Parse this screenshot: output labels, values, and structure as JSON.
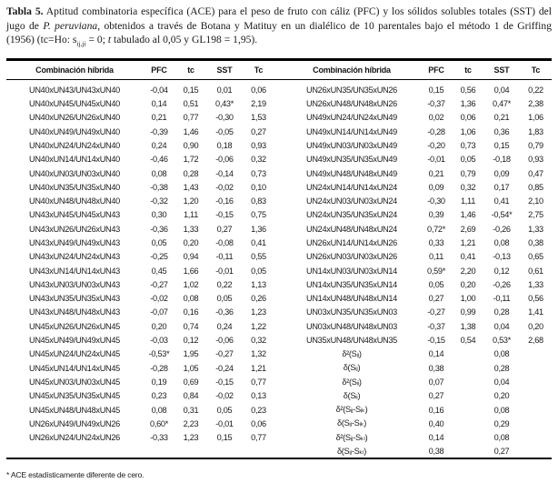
{
  "caption": {
    "label": "Tabla 5.",
    "seg1": " Aptitud combinatoria específica (ACE) para el peso de fruto con cáliz (PFC) y los sólidos solubles totales (SST) del jugo de ",
    "species": "P. peruviana",
    "seg2": ", obtenidos a través de Botana y Matituy en un dialélico de 10 parentales bajo el método 1 de Griffing (1956) (tc=Ho: s",
    "sub": "ij,ji",
    "seg3": " = 0; ",
    "t_symbol": "t",
    "seg4": " tabulado al 0,05 y GL198 = 1,95)."
  },
  "table": {
    "columns": [
      "Combinación híbrida",
      "PFC",
      "tc",
      "SST",
      "Tc"
    ],
    "left_rows": [
      [
        "UN40xUN43/UN43xUN40",
        "-0,04",
        "0,15",
        "0,01",
        "0,06"
      ],
      [
        "UN40xUN45/UN45xUN40",
        "0,14",
        "0,51",
        "0,43*",
        "2,19"
      ],
      [
        "UN40xUN26/UN26xUN40",
        "0,21",
        "0,77",
        "-0,30",
        "1,53"
      ],
      [
        "UN40xUN49/UN49xUN40",
        "-0,39",
        "1,46",
        "-0,05",
        "0,27"
      ],
      [
        "UN40xUN24/UN24xUN40",
        "0,24",
        "0,90",
        "0,18",
        "0,93"
      ],
      [
        "UN40xUN14/UN14xUN40",
        "-0,46",
        "1,72",
        "-0,06",
        "0,32"
      ],
      [
        "UN40xUN03/UN03xUN40",
        "0,08",
        "0,28",
        "-0,14",
        "0,73"
      ],
      [
        "UN40xUN35/UN35xUN40",
        "-0,38",
        "1,43",
        "-0,02",
        "0,10"
      ],
      [
        "UN40xUN48/UN48xUN40",
        "-0,32",
        "1,20",
        "-0,16",
        "0,83"
      ],
      [
        "UN43xUN45/UN45xUN43",
        "0,30",
        "1,11",
        "-0,15",
        "0,75"
      ],
      [
        "UN43xUN26/UN26xUN43",
        "-0,36",
        "1,33",
        "0,27",
        "1,36"
      ],
      [
        "UN43xUN49/UN49xUN43",
        "0,05",
        "0,20",
        "-0,08",
        "0,41"
      ],
      [
        "UN43xUN24/UN24xUN43",
        "-0,25",
        "0,94",
        "-0,11",
        "0,55"
      ],
      [
        "UN43xUN14/UN14xUN43",
        "0,45",
        "1,66",
        "-0,01",
        "0,05"
      ],
      [
        "UN43xUN03/UN03xUN43",
        "-0,27",
        "1,02",
        "0,22",
        "1,13"
      ],
      [
        "UN43xUN35/UN35xUN43",
        "-0,02",
        "0,08",
        "0,05",
        "0,26"
      ],
      [
        "UN43xUN48/UN48xUN43",
        "-0,07",
        "0,16",
        "-0,36",
        "1,23"
      ],
      [
        "UN45xUN26/UN26xUN45",
        "0,20",
        "0,74",
        "0,24",
        "1,22"
      ],
      [
        "UN45xUN49/UN49xUN45",
        "-0,03",
        "0,12",
        "-0,06",
        "0,32"
      ],
      [
        "UN45xUN24/UN24xUN45",
        "-0,53*",
        "1,95",
        "-0,27",
        "1,32"
      ],
      [
        "UN45xUN14/UN14xUN45",
        "-0,28",
        "1,05",
        "-0,24",
        "1,21"
      ],
      [
        "UN45xUN03/UN03xUN45",
        "0,19",
        "0,69",
        "-0,15",
        "0,77"
      ],
      [
        "UN45xUN35/UN35xUN45",
        "0,23",
        "0,84",
        "-0,02",
        "0,13"
      ],
      [
        "UN45xUN48/UN48xUN45",
        "0,08",
        "0,31",
        "0,05",
        "0,23"
      ],
      [
        "UN26xUN49/UN49xUN26",
        "0,60*",
        "2,23",
        "-0,01",
        "0,06"
      ],
      [
        "UN26xUN24/UN24xUN26",
        "-0,33",
        "1,23",
        "0,15",
        "0,77"
      ]
    ],
    "right_rows": [
      [
        "UN26xUN35/UN35xUN26",
        "0,15",
        "0,56",
        "0,04",
        "0,22"
      ],
      [
        "UN26xUN48/UN48xUN26",
        "-0,37",
        "1,36",
        "0,47*",
        "2,38"
      ],
      [
        "UN49xUN24/UN24xUN49",
        "0,02",
        "0,06",
        "0,21",
        "1,06"
      ],
      [
        "UN49xUN14/UN14xUN49",
        "-0,28",
        "1,06",
        "0,36",
        "1,83"
      ],
      [
        "UN49xUN03/UN03xUN49",
        "-0,20",
        "0,73",
        "0,15",
        "0,79"
      ],
      [
        "UN49xUN35/UN35xUN49",
        "-0,01",
        "0,05",
        "-0,18",
        "0,93"
      ],
      [
        "UN49xUN48/UN48xUN49",
        "0,21",
        "0,79",
        "0,09",
        "0,47"
      ],
      [
        "UN24xUN14/UN14xUN24",
        "0,09",
        "0,32",
        "0,17",
        "0,85"
      ],
      [
        "UN24xUN03/UN03xUN24",
        "-0,30",
        "1,11",
        "0,41",
        "2,10"
      ],
      [
        "UN24xUN35/UN35xUN24",
        "0,39",
        "1,46",
        "-0,54*",
        "2,75"
      ],
      [
        "UN24xUN48/UN48xUN24",
        "0,72*",
        "2,69",
        "-0,26",
        "1,33"
      ],
      [
        "UN26xUN14/UN14xUN26",
        "0,33",
        "1,21",
        "0,08",
        "0,38"
      ],
      [
        "UN26xUN03/UN03xUN26",
        "0,11",
        "0,41",
        "-0,13",
        "0,65"
      ],
      [
        "UN14xUN03/UN03xUN14",
        "0,59*",
        "2,20",
        "0,12",
        "0,61"
      ],
      [
        "UN14xUN35/UN35xUN14",
        "0,05",
        "0,20",
        "-0,26",
        "1,33"
      ],
      [
        "UN14xUN48/UN48xUN14",
        "0,27",
        "1,00",
        "-0,11",
        "0,56"
      ],
      [
        "UN03xUN35/UN35xUN03",
        "-0,27",
        "0,99",
        "0,28",
        "1,41"
      ],
      [
        "UN03xUN48/UN48xUN03",
        "-0,37",
        "1,38",
        "0,04",
        "0,20"
      ],
      [
        "UN35xUN48/UN48xUN35",
        "-0,15",
        "0,54",
        "0,53*",
        "2,68"
      ],
      [
        "δ²(Sᵢⱼ)",
        "0,14",
        "",
        "0,08",
        ""
      ],
      [
        "δ(Sᵢⱼ)",
        "0,38",
        "",
        "0,28",
        ""
      ],
      [
        "δ²(Sᵢᵢ)",
        "0,07",
        "",
        "0,04",
        ""
      ],
      [
        "δ(Sᵢᵢ)",
        "0,27",
        "",
        "0,20",
        ""
      ],
      [
        "δ²(Sᵢⱼ-Sᵢₖ)",
        "0,16",
        "",
        "0,08",
        ""
      ],
      [
        "δ(Sᵢⱼ-Sᵢₖ)",
        "0,40",
        "",
        "0,29",
        ""
      ],
      [
        "δ²(Sᵢⱼ-Sₖₗ)",
        "0,14",
        "",
        "0,08",
        ""
      ],
      [
        "δ(Sᵢⱼ-Sₖₗ)",
        "0,38",
        "",
        "0,27",
        ""
      ]
    ]
  },
  "footnote": "* ACE estadísticamente diferente de cero."
}
